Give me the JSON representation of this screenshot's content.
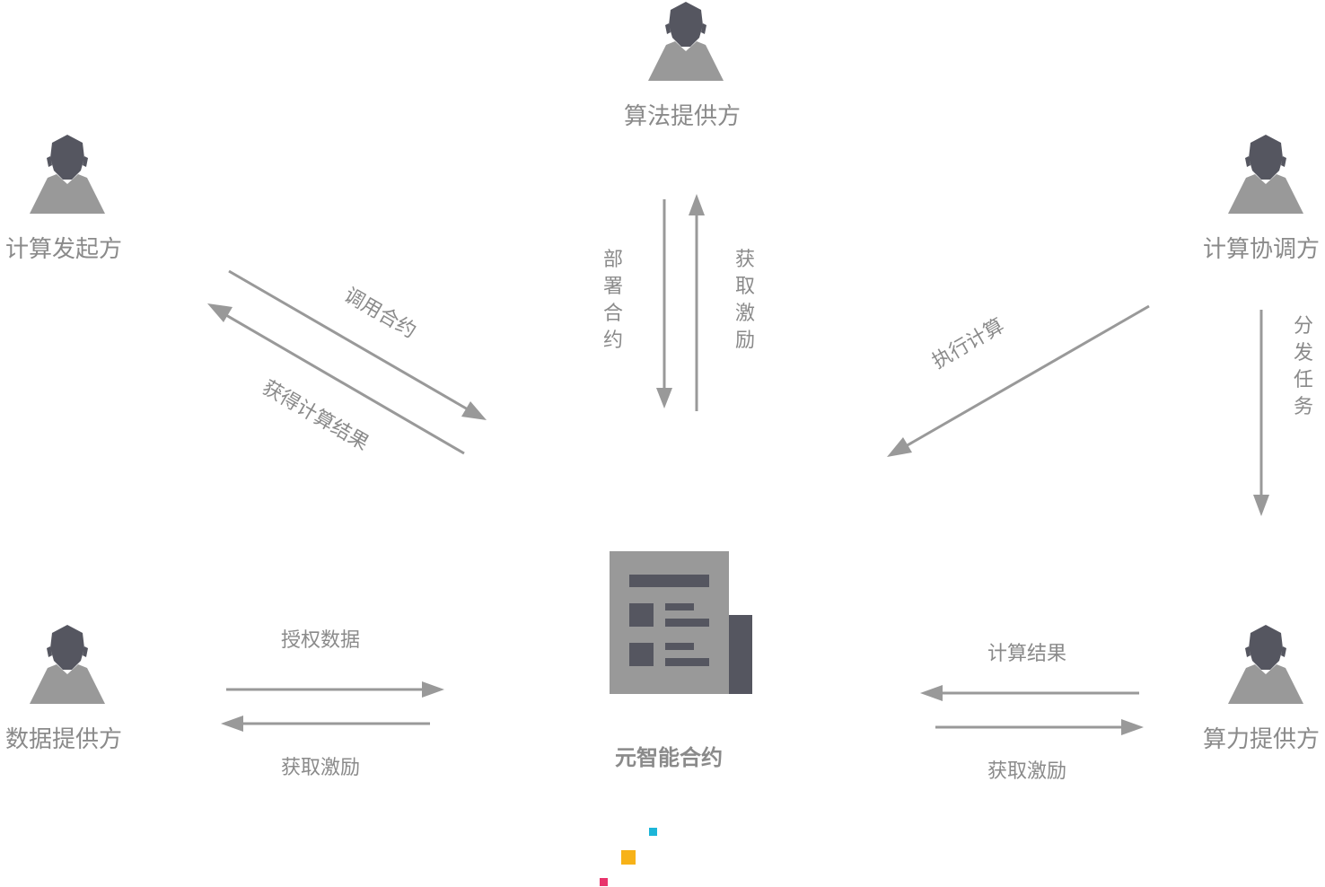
{
  "roles": {
    "algorithm_provider": "算法提供方",
    "computation_initiator": "计算发起方",
    "computation_coordinator": "计算协调方",
    "data_provider": "数据提供方",
    "compute_provider": "算力提供方"
  },
  "center": {
    "label": "元智能合约",
    "icon": "newspaper-contract-icon"
  },
  "flows": {
    "call_contract": "调用合约",
    "get_result": "获得计算结果",
    "deploy_contract": [
      "部",
      "署",
      "合",
      "约"
    ],
    "get_incentive_algorithm": [
      "获",
      "取",
      "激",
      "励"
    ],
    "execute_computation": "执行计算",
    "distribute_task": [
      "分",
      "发",
      "任",
      "务"
    ],
    "authorize_data": "授权数据",
    "get_incentive_data": "获取激励",
    "computation_result": "计算结果",
    "get_incentive_compute": "获取激励"
  },
  "colors": {
    "head": "#555660",
    "body": "#999999",
    "arrow": "#999999",
    "text": "#8a8a8a",
    "accent_cyan": "#1cb5d8",
    "accent_yellow": "#f7b218",
    "accent_pink": "#e8336b"
  }
}
